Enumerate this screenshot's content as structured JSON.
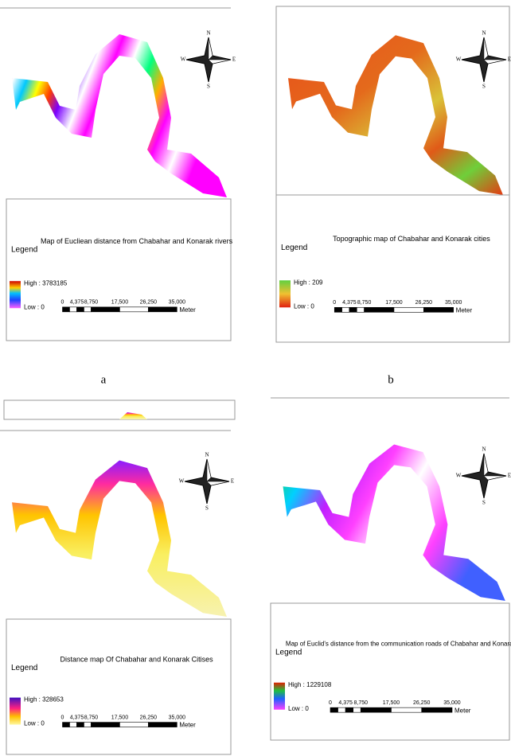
{
  "compass": {
    "north": "N",
    "south": "S",
    "west": "W",
    "east": "E"
  },
  "panels": [
    {
      "label": "a",
      "legend": {
        "heading": "Legend",
        "title": "Map of Eucliean distance from Chabahar and Konarak rivers",
        "high": "High : 3783185",
        "low": "Low : 0",
        "scale": [
          "0",
          "4,375",
          "8,750",
          "17,500",
          "26,250",
          "35,000"
        ],
        "unit": "Meter"
      }
    },
    {
      "label": "b",
      "legend": {
        "heading": "Legend",
        "title": "Topographic map of Chabahar and Konarak cities",
        "high": "High : 209",
        "low": "Low : 0",
        "scale": [
          "0",
          "4,375",
          "8,750",
          "17,500",
          "26,250",
          "35,000"
        ],
        "unit": "Meter"
      }
    },
    {
      "legend": {
        "heading": "Legend",
        "title": "Distance map Of Chabahar and Konarak Citises",
        "high": "High : 328653",
        "low": "Low : 0",
        "scale": [
          "0",
          "4,375",
          "8,750",
          "17,500",
          "26,250",
          "35,000"
        ],
        "unit": "Meter"
      }
    },
    {
      "legend": {
        "heading": "Legend",
        "title": "Map of Euclid's distance from the communication roads of Chabahar and Konarak cities",
        "high": "High : 1229108",
        "low": "Low : 0",
        "scale": [
          "0",
          "4,375",
          "8,750",
          "17,500",
          "26,250",
          "35,000"
        ],
        "unit": "Meter"
      }
    }
  ]
}
